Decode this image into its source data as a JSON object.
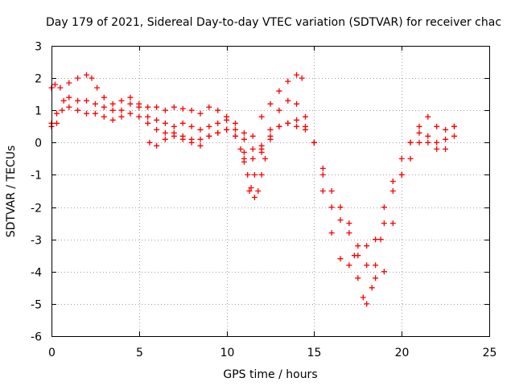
{
  "chart_data": {
    "type": "scatter",
    "title": "Day 179 of 2021, Sidereal Day-to-day VTEC variation (SDTVAR) for receiver chac",
    "xlabel": "GPS time / hours",
    "ylabel": "SDTVAR / TECUs",
    "xlim": [
      0,
      25
    ],
    "ylim": [
      -6,
      3
    ],
    "xticks": [
      0,
      5,
      10,
      15,
      20,
      25
    ],
    "yticks": [
      -6,
      -5,
      -4,
      -3,
      -2,
      -1,
      0,
      1,
      2,
      3
    ],
    "xtick_labels": [
      "0",
      "5",
      "10",
      "15",
      "20",
      "25"
    ],
    "ytick_labels": [
      "-6",
      "-5",
      "-4",
      "-3",
      "-2",
      "-1",
      "0",
      "1",
      "2",
      "3"
    ],
    "grid": true,
    "marker": "+",
    "color": "#ff0000",
    "series": [
      {
        "x": [
          0.0,
          0.2,
          0.5,
          1.0,
          1.5,
          2.0,
          2.3,
          2.6,
          3.0,
          3.5,
          4.0,
          4.5,
          5.0,
          5.5,
          6.0,
          6.5,
          7.0,
          7.5,
          8.0,
          8.5,
          9.0,
          9.5,
          10.0,
          10.5,
          11.0,
          11.5,
          12.0,
          12.5,
          13.0,
          13.5,
          14.0,
          14.3
        ],
        "y": [
          1.7,
          1.8,
          1.7,
          1.85,
          2.0,
          2.1,
          2.0,
          1.7,
          1.4,
          1.2,
          1.3,
          1.4,
          1.2,
          1.1,
          1.1,
          1.0,
          1.1,
          1.05,
          1.0,
          0.9,
          1.1,
          1.0,
          0.8,
          0.6,
          0.3,
          0.2,
          0.8,
          1.2,
          1.6,
          1.9,
          2.1,
          2.0
        ]
      },
      {
        "x": [
          0.0,
          0.3,
          0.7,
          1.0,
          1.5,
          2.0,
          2.5,
          3.0,
          3.5,
          4.0,
          4.5,
          5.0,
          5.5,
          6.0,
          6.5,
          7.0,
          7.5,
          8.0,
          8.5,
          9.0,
          9.5,
          10.0,
          10.5,
          11.0,
          11.5,
          12.0,
          12.5,
          13.0,
          13.5,
          14.0,
          14.5,
          15.0,
          15.5,
          16.0,
          16.5,
          17.0,
          17.5,
          18.0,
          18.5,
          19.0,
          19.5,
          20.0,
          20.5,
          21.0,
          21.5,
          22.0,
          22.5,
          23.0
        ],
        "y": [
          0.6,
          0.9,
          1.3,
          1.4,
          1.3,
          1.3,
          1.2,
          1.1,
          1.0,
          1.0,
          1.2,
          1.1,
          0.8,
          0.7,
          0.6,
          0.5,
          0.6,
          0.5,
          0.4,
          0.5,
          0.6,
          0.7,
          0.4,
          0.1,
          -0.2,
          -0.1,
          0.4,
          1.0,
          1.3,
          1.2,
          0.8,
          0.0,
          -1.0,
          -2.0,
          -2.4,
          -2.8,
          -3.2,
          -3.8,
          -4.2,
          -4.0,
          -2.5,
          -1.0,
          0.0,
          0.5,
          0.8,
          0.5,
          0.4,
          0.5
        ]
      },
      {
        "x": [
          0.0,
          0.3,
          0.6,
          1.0,
          1.5,
          2.0,
          2.5,
          3.0,
          3.5,
          4.0,
          4.5,
          5.0,
          5.5,
          6.0,
          6.5,
          7.0,
          7.5,
          8.0,
          8.5,
          9.0,
          9.5,
          10.0,
          10.5,
          11.0,
          11.5,
          12.0,
          12.5,
          13.0,
          13.5,
          14.0,
          14.5,
          15.0,
          15.5,
          16.0,
          16.5,
          17.0,
          17.3,
          17.5,
          17.8,
          18.0,
          18.3,
          18.5,
          18.8,
          19.0,
          19.5,
          20.0,
          20.5,
          21.0,
          21.5,
          22.0,
          22.5,
          23.0
        ],
        "y": [
          0.5,
          0.6,
          1.0,
          1.1,
          1.0,
          0.9,
          0.9,
          0.8,
          0.7,
          0.8,
          0.9,
          0.8,
          0.6,
          0.4,
          0.3,
          0.3,
          0.2,
          0.1,
          0.1,
          0.2,
          0.3,
          0.4,
          0.2,
          -0.3,
          -0.5,
          -0.3,
          0.1,
          0.5,
          0.6,
          0.7,
          0.5,
          0.0,
          -0.8,
          -1.5,
          -2.0,
          -2.5,
          -3.5,
          -4.2,
          -4.8,
          -5.0,
          -4.5,
          -3.8,
          -3.0,
          -2.5,
          -1.5,
          -1.0,
          -0.5,
          0.0,
          0.2,
          0.0,
          -0.2,
          0.2
        ]
      },
      {
        "x": [
          5.6,
          6.0,
          6.5,
          7.0,
          7.5,
          8.0,
          8.5,
          9.0,
          9.5,
          10.0,
          10.5,
          11.0,
          11.3,
          11.6,
          12.0,
          12.5,
          13.0,
          13.5,
          14.0,
          14.5,
          15.0,
          15.5,
          16.0,
          16.5,
          17.0,
          17.5,
          18.0,
          18.5,
          19.0,
          19.5,
          20.0,
          20.5,
          21.0,
          21.5,
          22.0,
          22.5,
          23.0
        ],
        "y": [
          0.0,
          -0.1,
          0.1,
          0.2,
          0.1,
          0.0,
          -0.1,
          0.2,
          0.3,
          0.4,
          0.2,
          -0.5,
          -1.5,
          -1.0,
          -0.2,
          0.2,
          0.5,
          0.6,
          0.5,
          0.4,
          0.0,
          -1.5,
          -2.8,
          -3.6,
          -3.8,
          -3.5,
          -3.2,
          -3.0,
          -2.0,
          -1.2,
          -0.5,
          0.0,
          0.3,
          0.0,
          -0.2,
          0.1,
          0.5
        ]
      },
      {
        "x": [
          10.8,
          11.0,
          11.2,
          11.4,
          11.6,
          11.8,
          12.0,
          12.2
        ],
        "y": [
          -0.2,
          -0.6,
          -1.0,
          -1.4,
          -1.7,
          -1.5,
          -1.0,
          -0.5
        ]
      }
    ]
  }
}
